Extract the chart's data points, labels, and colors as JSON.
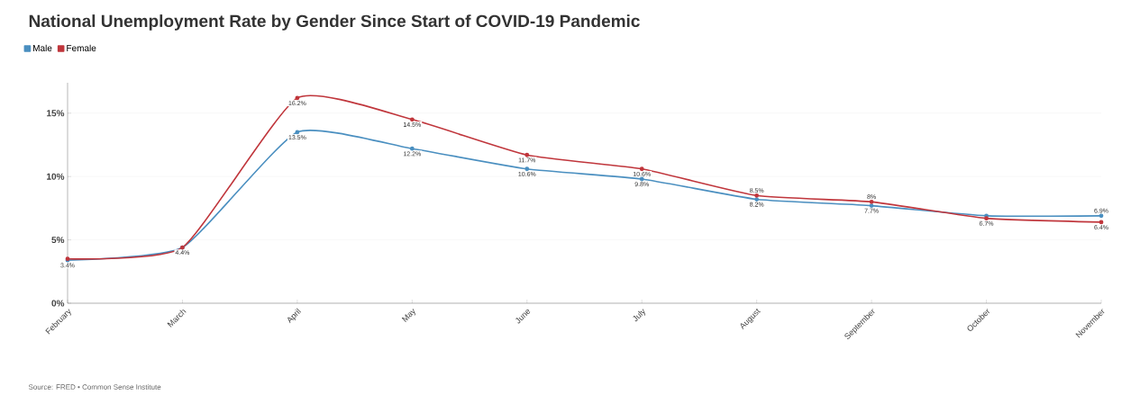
{
  "chart_data": {
    "type": "line",
    "title": "National Unemployment Rate by Gender Since Start of COVID-19 Pandemic",
    "categories": [
      "February",
      "March",
      "April",
      "May",
      "June",
      "July",
      "August",
      "September",
      "October",
      "November"
    ],
    "series": [
      {
        "name": "Male",
        "color": "#4a8fc0",
        "values": [
          3.4,
          4.4,
          13.5,
          12.2,
          10.6,
          9.8,
          8.2,
          7.7,
          6.9,
          6.9
        ],
        "value_labels": [
          "3.4%",
          "4.4%",
          "13.5%",
          "12.2%",
          "10.6%",
          "9.8%",
          "8.2%",
          "7.7%",
          null,
          "6.9%"
        ]
      },
      {
        "name": "Female",
        "color": "#c0363c",
        "values": [
          3.5,
          4.4,
          16.2,
          14.5,
          11.7,
          10.6,
          8.5,
          8.0,
          6.7,
          6.4
        ],
        "value_labels": [
          null,
          null,
          "16.2%",
          "14.5%",
          "11.7%",
          "10.6%",
          "8.5%",
          "8%",
          "6.7%",
          "6.4%"
        ]
      }
    ],
    "ylim": [
      0,
      17.4
    ],
    "yticks": [
      {
        "value": 0,
        "label": "0%"
      },
      {
        "value": 5,
        "label": "5%"
      },
      {
        "value": 10,
        "label": "10%"
      },
      {
        "value": 15,
        "label": "15%"
      }
    ],
    "grid": "y",
    "legend": "top left",
    "marker": "circle",
    "line_style": "solid",
    "annotations": [
      "Source: FRED • Common Sense Institute"
    ]
  }
}
